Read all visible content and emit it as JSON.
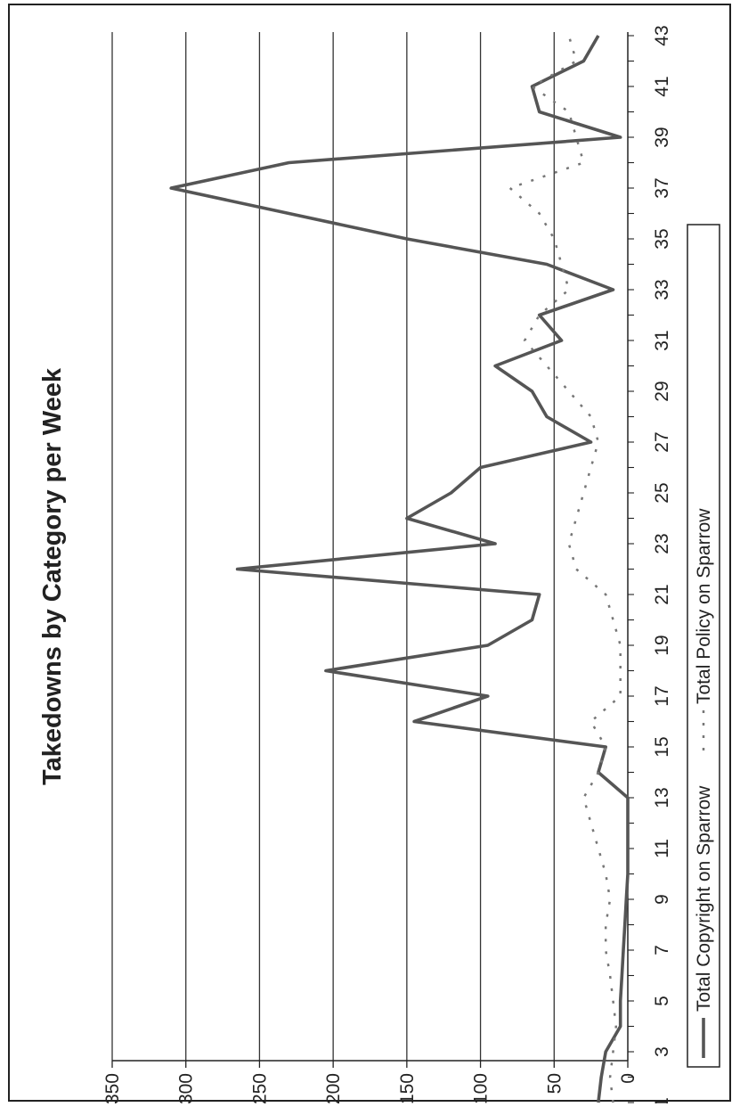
{
  "chart_data": {
    "type": "line",
    "title": "Takedowns by Category per Week",
    "xlabel": "",
    "ylabel": "",
    "ylim": [
      0,
      350
    ],
    "yticks": [
      0,
      50,
      100,
      150,
      200,
      250,
      300,
      350
    ],
    "x": [
      1,
      2,
      3,
      4,
      5,
      6,
      7,
      8,
      9,
      10,
      11,
      12,
      13,
      14,
      15,
      16,
      17,
      18,
      19,
      20,
      21,
      22,
      23,
      24,
      25,
      26,
      27,
      28,
      29,
      30,
      31,
      32,
      33,
      34,
      35,
      36,
      37,
      38,
      39,
      40,
      41,
      42,
      43
    ],
    "xtick_labels": [
      "1",
      "3",
      "5",
      "7",
      "9",
      "11",
      "13",
      "15",
      "17",
      "19",
      "21",
      "23",
      "25",
      "27",
      "29",
      "31",
      "33",
      "35",
      "37",
      "39",
      "41",
      "43"
    ],
    "grid": true,
    "legend_position": "bottom",
    "series": [
      {
        "name": "Total Copyright on Sparrow",
        "style": "solid",
        "color": "#555555",
        "values": [
          20,
          18,
          15,
          5,
          5,
          4,
          3,
          2,
          1,
          0,
          0,
          0,
          0,
          20,
          15,
          145,
          95,
          205,
          95,
          65,
          60,
          265,
          90,
          150,
          120,
          100,
          25,
          55,
          65,
          90,
          45,
          60,
          10,
          55,
          150,
          230,
          310,
          230,
          5,
          60,
          65,
          30,
          20
        ]
      },
      {
        "name": "Total Policy on Sparrow",
        "style": "dotted",
        "color": "#777777",
        "values": [
          10,
          12,
          10,
          8,
          10,
          12,
          15,
          15,
          12,
          15,
          20,
          25,
          30,
          20,
          15,
          25,
          5,
          5,
          5,
          10,
          15,
          35,
          40,
          35,
          30,
          25,
          20,
          25,
          40,
          55,
          70,
          60,
          40,
          45,
          50,
          60,
          80,
          30,
          35,
          40,
          65,
          35,
          40
        ]
      }
    ]
  }
}
